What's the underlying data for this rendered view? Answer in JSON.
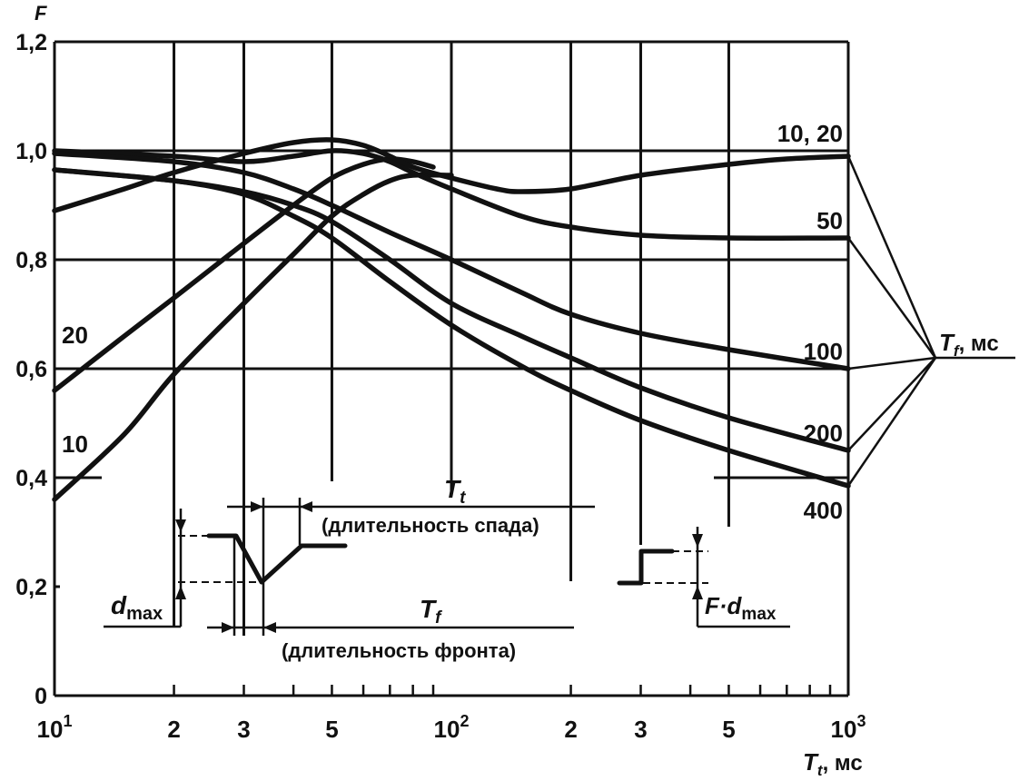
{
  "chart_data": {
    "type": "line",
    "x_scale": "log",
    "xlim": [
      10,
      1000
    ],
    "ylim": [
      0,
      1.2
    ],
    "y_axis_label": "F",
    "x_axis_label": "T",
    "x_axis_label_sub": "t",
    "x_axis_unit": ", мс",
    "x_tick_labels": [
      {
        "x": 10,
        "base": "10",
        "exp": "1"
      },
      {
        "x": 20,
        "base": "2",
        "exp": ""
      },
      {
        "x": 30,
        "base": "3",
        "exp": ""
      },
      {
        "x": 50,
        "base": "5",
        "exp": ""
      },
      {
        "x": 100,
        "base": "10",
        "exp": "2"
      },
      {
        "x": 200,
        "base": "2",
        "exp": ""
      },
      {
        "x": 300,
        "base": "3",
        "exp": ""
      },
      {
        "x": 500,
        "base": "5",
        "exp": ""
      },
      {
        "x": 1000,
        "base": "10",
        "exp": "3"
      }
    ],
    "y_ticks": [
      {
        "y": 0,
        "label": "0"
      },
      {
        "y": 0.2,
        "label": "0,2"
      },
      {
        "y": 0.4,
        "label": "0,4"
      },
      {
        "y": 0.6,
        "label": "0,6"
      },
      {
        "y": 0.8,
        "label": "0,8"
      },
      {
        "y": 1.0,
        "label": "1,0"
      },
      {
        "y": 1.2,
        "label": "1,2"
      }
    ],
    "series": [
      {
        "name": "10",
        "x": [
          10,
          15,
          20,
          30,
          40,
          50,
          60,
          70,
          80,
          100
        ],
        "y": [
          0.36,
          0.48,
          0.59,
          0.72,
          0.81,
          0.88,
          0.92,
          0.945,
          0.955,
          0.955
        ]
      },
      {
        "name": "20",
        "x": [
          10,
          15,
          20,
          30,
          40,
          50,
          60,
          70,
          80,
          90
        ],
        "y": [
          0.56,
          0.66,
          0.73,
          0.83,
          0.9,
          0.95,
          0.975,
          0.985,
          0.98,
          0.97
        ]
      },
      {
        "name": "10, 20",
        "x": [
          10,
          15,
          20,
          30,
          40,
          50,
          60,
          70,
          80,
          100,
          130,
          150,
          200,
          300,
          500,
          700,
          1000
        ],
        "y": [
          0.89,
          0.93,
          0.96,
          0.995,
          1.015,
          1.02,
          1.01,
          0.99,
          0.97,
          0.95,
          0.93,
          0.925,
          0.93,
          0.955,
          0.975,
          0.985,
          0.99
        ]
      },
      {
        "name": "50",
        "x": [
          10,
          20,
          30,
          40,
          50,
          60,
          70,
          80,
          100,
          150,
          200,
          300,
          500,
          1000
        ],
        "y": [
          1.0,
          0.99,
          0.98,
          0.99,
          1.0,
          0.995,
          0.98,
          0.96,
          0.93,
          0.88,
          0.86,
          0.845,
          0.84,
          0.84
        ]
      },
      {
        "name": "100",
        "x": [
          10,
          20,
          30,
          40,
          50,
          70,
          100,
          150,
          200,
          300,
          500,
          1000
        ],
        "y": [
          0.995,
          0.98,
          0.96,
          0.93,
          0.9,
          0.85,
          0.8,
          0.74,
          0.7,
          0.665,
          0.635,
          0.6
        ]
      },
      {
        "name": "200",
        "x": [
          10,
          20,
          30,
          40,
          50,
          70,
          100,
          150,
          200,
          300,
          500,
          1000
        ],
        "y": [
          0.965,
          0.945,
          0.925,
          0.9,
          0.87,
          0.8,
          0.72,
          0.66,
          0.62,
          0.565,
          0.51,
          0.45
        ]
      },
      {
        "name": "400",
        "x": [
          10,
          20,
          30,
          40,
          50,
          70,
          100,
          150,
          200,
          300,
          500,
          1000
        ],
        "y": [
          0.965,
          0.945,
          0.92,
          0.88,
          0.84,
          0.76,
          0.68,
          0.605,
          0.56,
          0.505,
          0.45,
          0.385
        ]
      }
    ],
    "curve_labels": [
      {
        "text": "10, 20",
        "x": 1000,
        "y": 1.0,
        "side": "left-above"
      },
      {
        "text": "50",
        "x": 1000,
        "y": 0.84,
        "side": "left-above"
      },
      {
        "text": "100",
        "x": 1000,
        "y": 0.6,
        "side": "left-above"
      },
      {
        "text": "200",
        "x": 1000,
        "y": 0.45,
        "side": "left-above"
      },
      {
        "text": "400",
        "x": 1000,
        "y": 0.385,
        "side": "left-below"
      },
      {
        "text": "20",
        "x": 10,
        "y": 0.56,
        "side": "right-above"
      },
      {
        "text": "10",
        "x": 10,
        "y": 0.36,
        "side": "right-above"
      }
    ],
    "fan_label": "T",
    "fan_label_sub": "f",
    "fan_label_unit": ", мс",
    "grid": true
  },
  "inset": {
    "tt_label": "T",
    "tt_sub": "t",
    "tt_caption": "(длительность спада)",
    "tf_label": "T",
    "tf_sub": "f",
    "tf_caption": "(длительность фронта)",
    "dmax_label": "d",
    "dmax_sub": "max",
    "fd_label": "F·d",
    "fd_sub": "max"
  }
}
